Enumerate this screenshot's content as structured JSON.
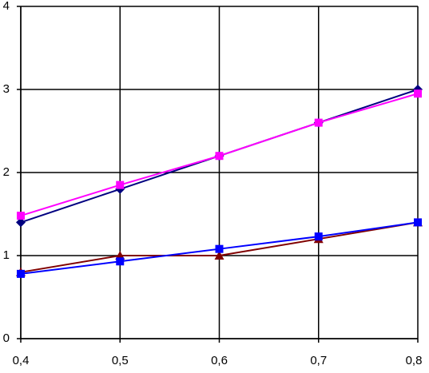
{
  "chart_data": {
    "type": "line",
    "x": [
      0.4,
      0.5,
      0.6,
      0.7,
      0.8
    ],
    "xlim": [
      0.4,
      0.8
    ],
    "xticks": [
      {
        "value": 0.4,
        "label": "0,4"
      },
      {
        "value": 0.5,
        "label": "0,5"
      },
      {
        "value": 0.6,
        "label": "0,6"
      },
      {
        "value": 0.7,
        "label": "0,7"
      },
      {
        "value": 0.8,
        "label": "0,8"
      }
    ],
    "ylim": [
      0,
      4
    ],
    "yticks": [
      0,
      1,
      2,
      3,
      4
    ],
    "grid": true,
    "series": [
      {
        "color": "#000080",
        "marker": "diamond",
        "values": [
          1.4,
          1.8,
          2.2,
          2.6,
          3.0
        ]
      },
      {
        "color": "#ff00ff",
        "marker": "square",
        "values": [
          1.48,
          1.85,
          2.2,
          2.6,
          2.95
        ]
      },
      {
        "color": "#800000",
        "marker": "triangle",
        "values": [
          0.8,
          1.0,
          1.0,
          1.2,
          1.4
        ]
      },
      {
        "color": "#0000ff",
        "marker": "square",
        "values": [
          0.78,
          0.93,
          1.08,
          1.23,
          1.4
        ]
      }
    ]
  }
}
